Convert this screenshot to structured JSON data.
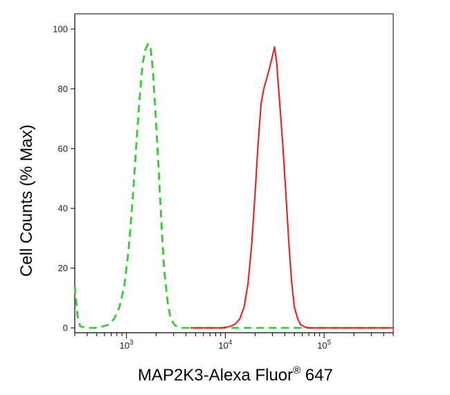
{
  "chart_data": {
    "type": "line",
    "title": "",
    "xlabel": "MAP2K3-Alexa Fluor",
    "xlabel_superscript": "®",
    "xlabel_suffix": " 647",
    "ylabel": "Cell Counts (% Max)",
    "xscale": "log",
    "xlim": [
      300,
      500000
    ],
    "ylim": [
      0,
      100
    ],
    "y_ticks": [
      0,
      20,
      40,
      60,
      80,
      100
    ],
    "x_major_ticks": [
      {
        "value": 1000,
        "base": "10",
        "exp": "3"
      },
      {
        "value": 10000,
        "base": "10",
        "exp": "4"
      },
      {
        "value": 100000,
        "base": "10",
        "exp": "5"
      }
    ],
    "grid": false,
    "series": [
      {
        "color": "#33cc33",
        "dash": "dashed",
        "points": [
          [
            300,
            14
          ],
          [
            320,
            4
          ],
          [
            340,
            0.5
          ],
          [
            400,
            0
          ],
          [
            480,
            0
          ],
          [
            560,
            0.4
          ],
          [
            650,
            1
          ],
          [
            750,
            3
          ],
          [
            850,
            7
          ],
          [
            950,
            14
          ],
          [
            1050,
            26
          ],
          [
            1150,
            42
          ],
          [
            1250,
            60
          ],
          [
            1350,
            76
          ],
          [
            1450,
            88
          ],
          [
            1550,
            93
          ],
          [
            1650,
            95
          ],
          [
            1750,
            94
          ],
          [
            1850,
            86
          ],
          [
            1950,
            74
          ],
          [
            2100,
            55
          ],
          [
            2250,
            36
          ],
          [
            2400,
            20
          ],
          [
            2600,
            9
          ],
          [
            2800,
            3
          ],
          [
            3100,
            0.8
          ],
          [
            3600,
            0
          ],
          [
            5000,
            0
          ],
          [
            8000,
            0
          ],
          [
            20000,
            0
          ],
          [
            50000,
            0
          ],
          [
            100000,
            0
          ],
          [
            500000,
            0
          ]
        ]
      },
      {
        "color": "#e8262b",
        "dash": "solid",
        "points": [
          [
            4500,
            0
          ],
          [
            9000,
            0
          ],
          [
            11000,
            0.4
          ],
          [
            12500,
            1.2
          ],
          [
            14000,
            3
          ],
          [
            15500,
            7
          ],
          [
            17000,
            15
          ],
          [
            18500,
            28
          ],
          [
            20000,
            45
          ],
          [
            21500,
            62
          ],
          [
            23000,
            75
          ],
          [
            24500,
            80
          ],
          [
            26500,
            84
          ],
          [
            28500,
            88
          ],
          [
            30500,
            92
          ],
          [
            31500,
            94
          ],
          [
            33000,
            89
          ],
          [
            35000,
            78
          ],
          [
            38000,
            62
          ],
          [
            41000,
            45
          ],
          [
            44000,
            28
          ],
          [
            47000,
            15
          ],
          [
            50000,
            7
          ],
          [
            54000,
            3
          ],
          [
            58000,
            1
          ],
          [
            64000,
            0.3
          ],
          [
            70000,
            0
          ],
          [
            100000,
            0
          ],
          [
            500000,
            0
          ]
        ]
      }
    ]
  }
}
